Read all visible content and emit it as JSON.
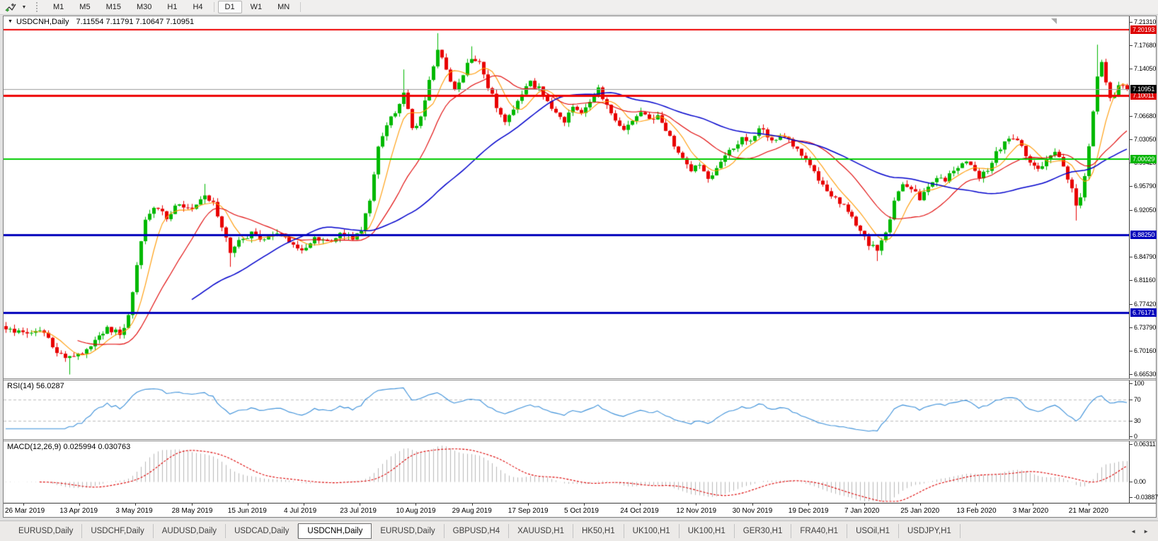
{
  "toolbar": {
    "tool_icon": "chart-cursor-icon",
    "dropdown_caret": "▼",
    "timeframes": [
      "M1",
      "M5",
      "M15",
      "M30",
      "H1",
      "H4",
      "D1",
      "W1",
      "MN"
    ],
    "active_timeframe": "D1"
  },
  "window": {
    "title_caret": "▼",
    "title_symbol": "USDCNH,Daily",
    "title_ohlc": "7.11554 7.11791 7.10647 7.10951"
  },
  "price_axis": {
    "ticks": [
      "7.21310",
      "7.17680",
      "7.14050",
      "7.06680",
      "7.03050",
      "6.99420",
      "6.95790",
      "6.92050",
      "6.84790",
      "6.81160",
      "6.77420",
      "6.73790",
      "6.70160",
      "6.66530"
    ],
    "badges": [
      {
        "value": "7.20193",
        "color": "#dd0000"
      },
      {
        "value": "7.10011",
        "color": "#dd0000"
      },
      {
        "value": "7.10951",
        "color": "#000000"
      },
      {
        "value": "7.00029",
        "color": "#00b400"
      },
      {
        "value": "6.88250",
        "color": "#0000bb"
      },
      {
        "value": "6.76171",
        "color": "#0000bb"
      }
    ]
  },
  "chart_data": {
    "type": "candlestick",
    "symbol": "USDCNH",
    "timeframe": "Daily",
    "bars": 266,
    "price_range": {
      "top": 7.2063,
      "bottom": 6.6595
    },
    "candle_colors": {
      "up": "#00b800",
      "down": "#e80000"
    },
    "bid_line": {
      "price": 7.10951,
      "color": "#9b9b9b"
    },
    "horizontal_lines": [
      {
        "price": 7.20193,
        "color": "#ee0000",
        "width": 2
      },
      {
        "price": 7.10011,
        "color": "#ee0000",
        "width": 3
      },
      {
        "price": 7.00029,
        "color": "#00cc00",
        "width": 2
      },
      {
        "price": 6.8825,
        "color": "#0000bb",
        "width": 3
      },
      {
        "price": 6.76171,
        "color": "#0000bb",
        "width": 3
      }
    ],
    "moving_averages": [
      {
        "period": 7,
        "color": "#ff9900"
      },
      {
        "period": 18,
        "color": "#e00000"
      },
      {
        "period": 45,
        "color": "#0000cc"
      }
    ],
    "close_waypoints": [
      [
        0,
        6.74
      ],
      [
        4,
        6.729
      ],
      [
        8,
        6.737
      ],
      [
        12,
        6.703
      ],
      [
        15,
        6.69
      ],
      [
        18,
        6.701
      ],
      [
        21,
        6.72
      ],
      [
        24,
        6.737
      ],
      [
        27,
        6.729
      ],
      [
        29,
        6.755
      ],
      [
        31,
        6.84
      ],
      [
        33,
        6.902
      ],
      [
        35,
        6.928
      ],
      [
        38,
        6.911
      ],
      [
        41,
        6.932
      ],
      [
        44,
        6.924
      ],
      [
        47,
        6.946
      ],
      [
        49,
        6.93
      ],
      [
        51,
        6.896
      ],
      [
        53,
        6.853
      ],
      [
        55,
        6.871
      ],
      [
        58,
        6.885
      ],
      [
        61,
        6.872
      ],
      [
        64,
        6.887
      ],
      [
        67,
        6.874
      ],
      [
        70,
        6.857
      ],
      [
        73,
        6.879
      ],
      [
        76,
        6.872
      ],
      [
        79,
        6.882
      ],
      [
        82,
        6.876
      ],
      [
        84,
        6.889
      ],
      [
        86,
        6.94
      ],
      [
        88,
        7.022
      ],
      [
        90,
        7.056
      ],
      [
        92,
        7.072
      ],
      [
        94,
        7.103
      ],
      [
        96,
        7.046
      ],
      [
        98,
        7.064
      ],
      [
        100,
        7.122
      ],
      [
        102,
        7.172
      ],
      [
        104,
        7.143
      ],
      [
        106,
        7.104
      ],
      [
        108,
        7.133
      ],
      [
        110,
        7.16
      ],
      [
        112,
        7.152
      ],
      [
        114,
        7.113
      ],
      [
        116,
        7.083
      ],
      [
        118,
        7.054
      ],
      [
        120,
        7.08
      ],
      [
        122,
        7.103
      ],
      [
        124,
        7.118
      ],
      [
        126,
        7.11
      ],
      [
        128,
        7.088
      ],
      [
        130,
        7.071
      ],
      [
        132,
        7.06
      ],
      [
        134,
        7.086
      ],
      [
        136,
        7.07
      ],
      [
        138,
        7.093
      ],
      [
        140,
        7.11
      ],
      [
        142,
        7.083
      ],
      [
        144,
        7.058
      ],
      [
        146,
        7.046
      ],
      [
        148,
        7.06
      ],
      [
        150,
        7.073
      ],
      [
        152,
        7.06
      ],
      [
        154,
        7.068
      ],
      [
        156,
        7.046
      ],
      [
        158,
        7.023
      ],
      [
        160,
        7.003
      ],
      [
        162,
        6.986
      ],
      [
        164,
        6.99
      ],
      [
        166,
        6.973
      ],
      [
        168,
        6.983
      ],
      [
        170,
        7.003
      ],
      [
        172,
        7.02
      ],
      [
        174,
        7.033
      ],
      [
        176,
        7.026
      ],
      [
        178,
        7.05
      ],
      [
        180,
        7.038
      ],
      [
        182,
        7.028
      ],
      [
        184,
        7.038
      ],
      [
        186,
        7.023
      ],
      [
        188,
        7.008
      ],
      [
        190,
        6.988
      ],
      [
        192,
        6.97
      ],
      [
        194,
        6.953
      ],
      [
        196,
        6.94
      ],
      [
        198,
        6.928
      ],
      [
        200,
        6.91
      ],
      [
        202,
        6.888
      ],
      [
        204,
        6.868
      ],
      [
        206,
        6.86
      ],
      [
        208,
        6.883
      ],
      [
        210,
        6.932
      ],
      [
        212,
        6.96
      ],
      [
        214,
        6.956
      ],
      [
        216,
        6.94
      ],
      [
        218,
        6.958
      ],
      [
        220,
        6.973
      ],
      [
        222,
        6.966
      ],
      [
        224,
        6.983
      ],
      [
        226,
        6.998
      ],
      [
        228,
        6.99
      ],
      [
        230,
        6.97
      ],
      [
        232,
        6.986
      ],
      [
        234,
        7.01
      ],
      [
        236,
        7.026
      ],
      [
        238,
        7.033
      ],
      [
        240,
        7.02
      ],
      [
        242,
        6.998
      ],
      [
        244,
        6.983
      ],
      [
        246,
        7.0
      ],
      [
        248,
        7.013
      ],
      [
        250,
        6.99
      ],
      [
        252,
        6.953
      ],
      [
        253,
        6.93
      ],
      [
        254,
        6.943
      ],
      [
        255,
        6.973
      ],
      [
        256,
        7.018
      ],
      [
        257,
        7.078
      ],
      [
        258,
        7.128
      ],
      [
        259,
        7.152
      ],
      [
        260,
        7.118
      ],
      [
        261,
        7.093
      ],
      [
        263,
        7.113
      ],
      [
        265,
        7.11
      ]
    ],
    "wick_extremes": [
      {
        "i": 15,
        "l": 6.6655
      },
      {
        "i": 47,
        "h": 6.962
      },
      {
        "i": 53,
        "l": 6.833
      },
      {
        "i": 94,
        "h": 7.14
      },
      {
        "i": 102,
        "h": 7.1965
      },
      {
        "i": 110,
        "h": 7.176
      },
      {
        "i": 206,
        "l": 6.842
      },
      {
        "i": 253,
        "l": 6.905
      },
      {
        "i": 258,
        "h": 7.1786
      }
    ],
    "last_bar_ohlc": [
      7.11554,
      7.11791,
      7.10647,
      7.10951
    ]
  },
  "rsi": {
    "label": "RSI(14) 56.0287",
    "period": 14,
    "levels": [
      70,
      30
    ],
    "axis_labels": [
      "100",
      "70",
      "30",
      "0"
    ],
    "line_color": "#3a8fd9"
  },
  "macd": {
    "label": "MACD(12,26,9) 0.025994 0.030763",
    "fast": 12,
    "slow": 26,
    "signal": 9,
    "axis_labels": [
      "0.06311",
      "0.00",
      "-0.03887"
    ],
    "histogram_color": "#b8b8b8",
    "signal_color": "#dd0000",
    "max": 0.06311,
    "min": -0.03887
  },
  "date_axis": {
    "labels": [
      "26 Mar 2019",
      "13 Apr 2019",
      "3 May 2019",
      "28 May 2019",
      "15 Jun 2019",
      "4 Jul 2019",
      "23 Jul 2019",
      "10 Aug 2019",
      "29 Aug 2019",
      "17 Sep 2019",
      "5 Oct 2019",
      "24 Oct 2019",
      "12 Nov 2019",
      "30 Nov 2019",
      "19 Dec 2019",
      "7 Jan 2020",
      "25 Jan 2020",
      "13 Feb 2020",
      "3 Mar 2020",
      "21 Mar 2020"
    ]
  },
  "tabbar": {
    "tabs": [
      "EURUSD,Daily",
      "USDCHF,Daily",
      "AUDUSD,Daily",
      "USDCAD,Daily",
      "USDCNH,Daily",
      "EURUSD,Daily",
      "GBPUSD,H4",
      "XAUUSD,H1",
      "HK50,H1",
      "UK100,H1",
      "UK100,H1",
      "GER30,H1",
      "FRA40,H1",
      "USOil,H1",
      "USDJPY,H1"
    ],
    "active_index": 4,
    "prev_arrow": "◄",
    "next_arrow": "►"
  }
}
